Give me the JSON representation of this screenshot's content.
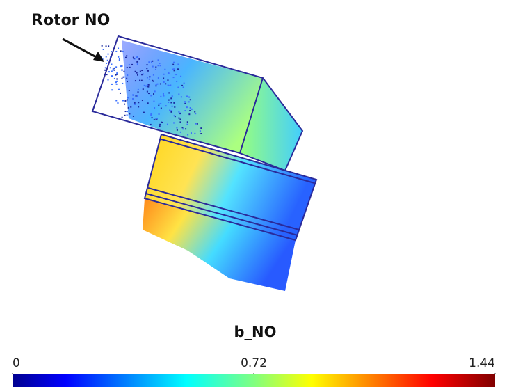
{
  "annotation": "Rotor NO",
  "colorbar": {
    "title": "b_NO",
    "ticks": [
      0,
      0.72,
      1.44
    ]
  }
}
